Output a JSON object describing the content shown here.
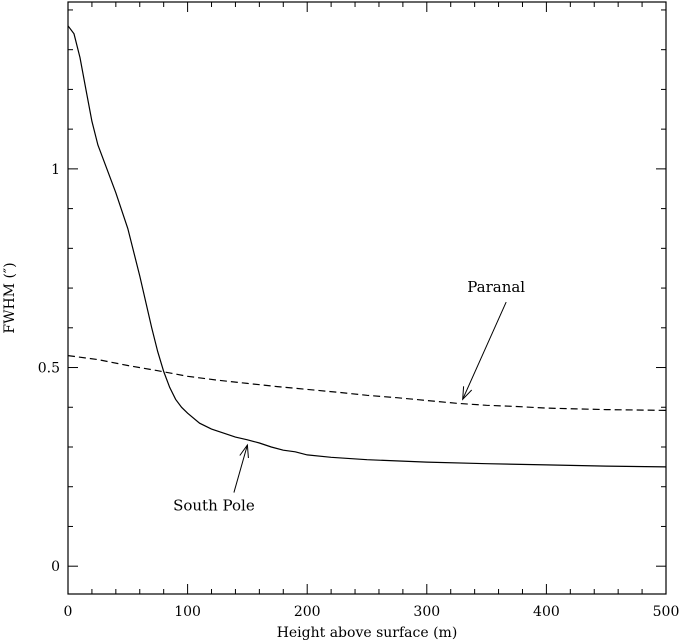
{
  "chart_data": {
    "type": "line",
    "xlabel": "Height above surface (m)",
    "ylabel": "FWHM (″)",
    "xlim": [
      0,
      500
    ],
    "ylim": [
      -0.07,
      1.42
    ],
    "xticks": [
      0,
      100,
      200,
      300,
      400,
      500
    ],
    "yticks": [
      0,
      0.5,
      1
    ],
    "xtick_labels": [
      "0",
      "100",
      "200",
      "300",
      "400",
      "500"
    ],
    "ytick_labels": [
      "0",
      "0.5",
      "1"
    ],
    "grid": false,
    "series": [
      {
        "name": "South Pole",
        "style": "solid",
        "x": [
          0,
          5,
          10,
          15,
          20,
          25,
          30,
          40,
          50,
          60,
          70,
          75,
          80,
          85,
          90,
          95,
          100,
          110,
          120,
          130,
          140,
          150,
          160,
          170,
          180,
          190,
          200,
          220,
          250,
          300,
          350,
          400,
          450,
          500
        ],
        "y": [
          1.36,
          1.34,
          1.28,
          1.2,
          1.12,
          1.06,
          1.02,
          0.94,
          0.85,
          0.73,
          0.6,
          0.54,
          0.49,
          0.45,
          0.42,
          0.4,
          0.385,
          0.36,
          0.345,
          0.335,
          0.325,
          0.318,
          0.31,
          0.3,
          0.292,
          0.288,
          0.28,
          0.274,
          0.268,
          0.262,
          0.258,
          0.255,
          0.252,
          0.25
        ]
      },
      {
        "name": "Paranal",
        "style": "dashed",
        "x": [
          0,
          25,
          50,
          75,
          100,
          125,
          150,
          175,
          200,
          225,
          250,
          275,
          300,
          325,
          350,
          375,
          400,
          425,
          450,
          475,
          500
        ],
        "y": [
          0.53,
          0.52,
          0.505,
          0.492,
          0.478,
          0.468,
          0.46,
          0.452,
          0.445,
          0.438,
          0.43,
          0.424,
          0.417,
          0.41,
          0.405,
          0.402,
          0.398,
          0.396,
          0.394,
          0.393,
          0.392
        ]
      }
    ],
    "annotations": [
      {
        "text": "Paranal",
        "target": [
          330,
          0.42
        ],
        "text_pos": [
          358,
          0.69
        ]
      },
      {
        "text": "South Pole",
        "target": [
          150,
          0.305
        ],
        "text_pos": [
          122,
          0.14
        ]
      }
    ]
  }
}
